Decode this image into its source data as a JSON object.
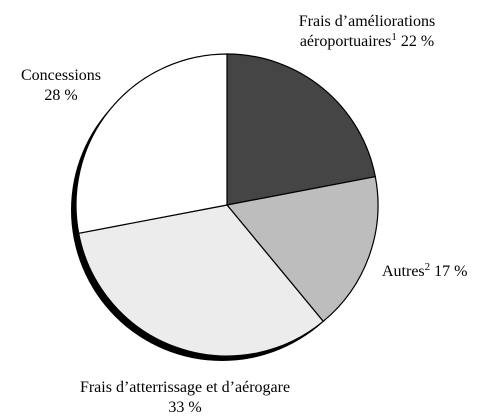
{
  "chart_data": {
    "type": "pie",
    "categories": [
      "Frais d’améliorations aéroportuaires",
      "Autres",
      "Frais d’atterrissage et d’aérogare",
      "Concessions"
    ],
    "footnotes": [
      "1",
      "2",
      null,
      null
    ],
    "values": [
      22,
      17,
      33,
      28
    ],
    "value_labels": [
      "22 %",
      "17 %",
      "33 %",
      "28 %"
    ],
    "colors": [
      "#454545",
      "#bdbdbd",
      "#ececec",
      "#ffffff"
    ]
  }
}
